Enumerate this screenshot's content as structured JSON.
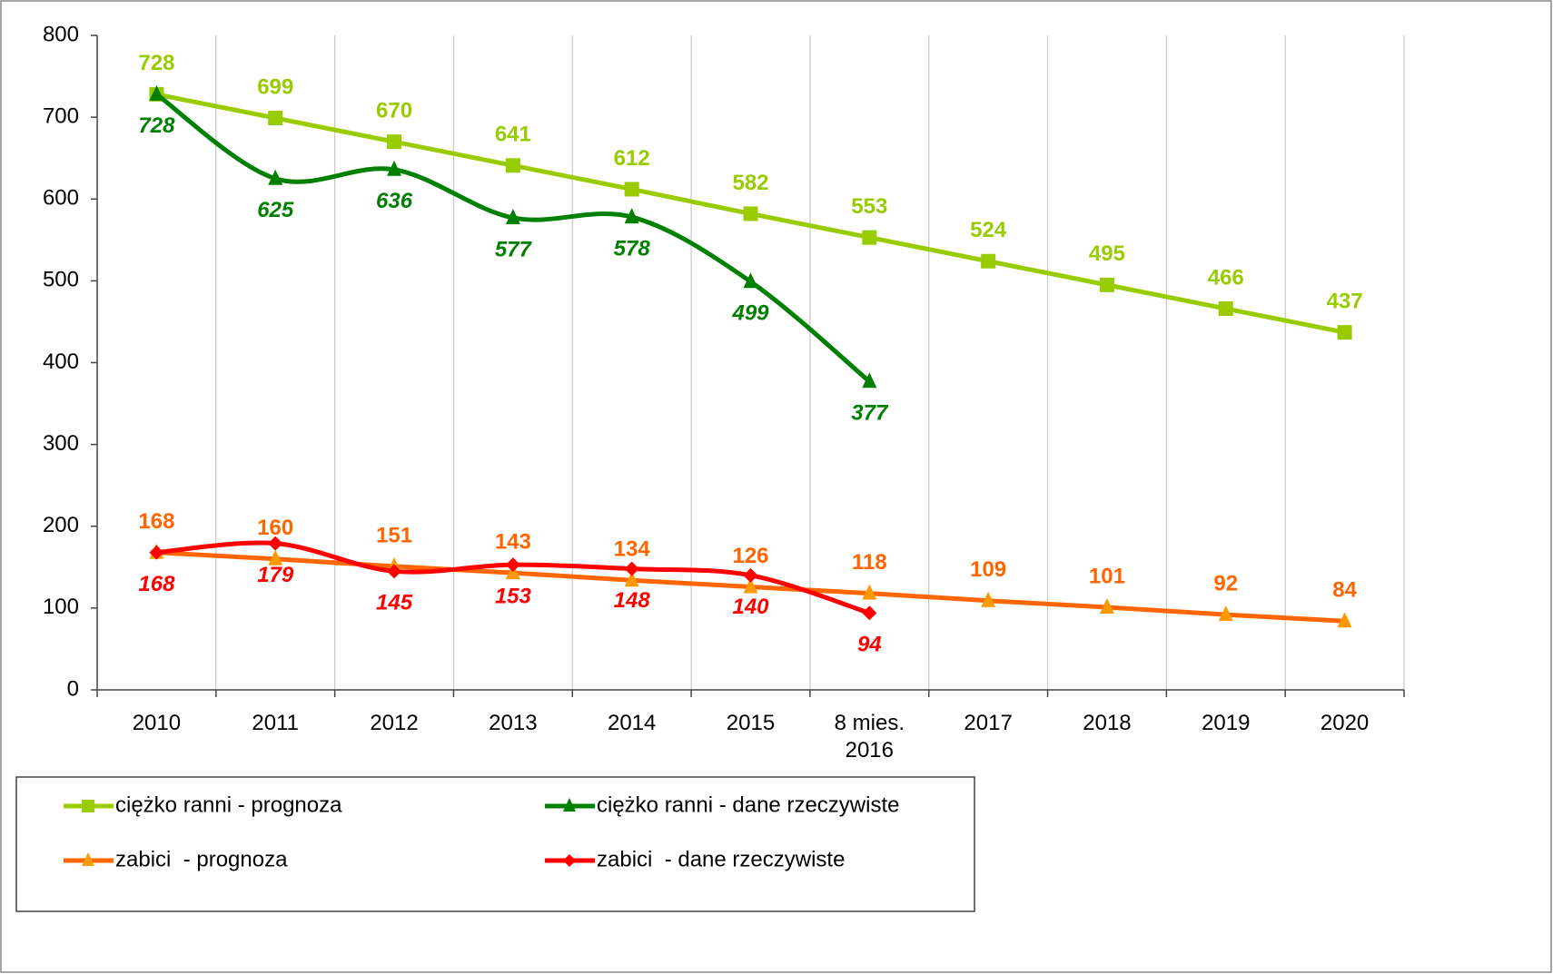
{
  "chart_data": {
    "type": "line",
    "categories": [
      "2010",
      "2011",
      "2012",
      "2013",
      "2014",
      "2015",
      "8 mies.\n2016",
      "2017",
      "2018",
      "2019",
      "2020"
    ],
    "ylim": [
      0,
      800
    ],
    "yticks": [
      0,
      100,
      200,
      300,
      400,
      500,
      600,
      700,
      800
    ],
    "grid": "vertical",
    "legend": "bottom",
    "series": [
      {
        "name": "ciężko ranni - prognoza",
        "color": "#99cc00",
        "marker": "square",
        "smooth": false,
        "label_position": "above",
        "label_style": "normal",
        "values": [
          728,
          699,
          670,
          641,
          612,
          582,
          553,
          524,
          495,
          466,
          437
        ]
      },
      {
        "name": "ciężko ranni - dane rzeczywiste",
        "color": "#008000",
        "marker": "triangle",
        "smooth": true,
        "label_position": "below",
        "label_style": "italic",
        "values": [
          728,
          625,
          636,
          577,
          578,
          499,
          377,
          null,
          null,
          null,
          null
        ]
      },
      {
        "name": "zabici  - prognoza",
        "color": "#ff6600",
        "marker_color": "#ff9900",
        "marker": "triangle",
        "smooth": false,
        "label_position": "above",
        "label_style": "normal",
        "values": [
          168,
          160,
          151,
          143,
          134,
          126,
          118,
          109,
          101,
          92,
          84
        ]
      },
      {
        "name": "zabici  - dane rzeczywiste",
        "color": "#ff0000",
        "marker": "diamond",
        "smooth": true,
        "label_position": "below",
        "label_style": "italic",
        "values": [
          168,
          179,
          145,
          153,
          148,
          140,
          94,
          null,
          null,
          null,
          null
        ]
      }
    ]
  }
}
